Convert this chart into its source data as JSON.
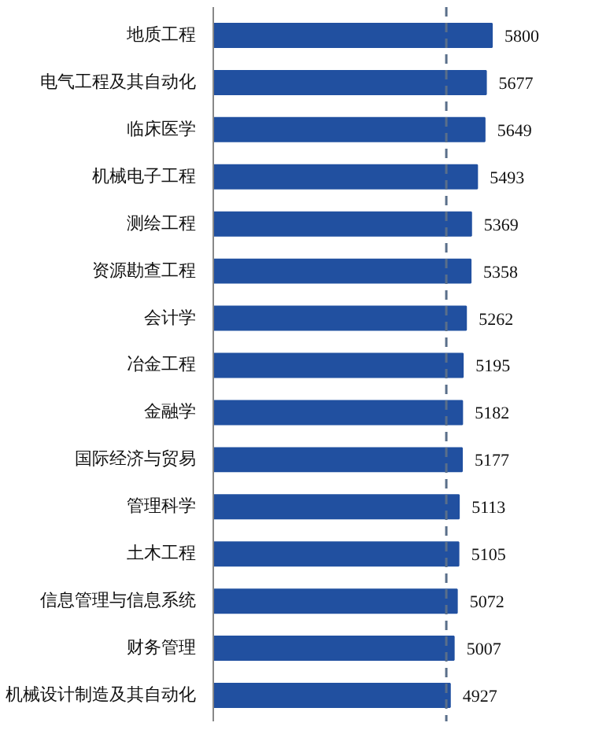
{
  "chart_data": {
    "type": "bar",
    "orientation": "horizontal",
    "categories": [
      "地质工程",
      "电气工程及其自动化",
      "临床医学",
      "机械电子工程",
      "测绘工程",
      "资源勘查工程",
      "会计学",
      "冶金工程",
      "金融学",
      "国际经济与贸易",
      "管理科学",
      "土木工程",
      "信息管理与信息系统",
      "财务管理",
      "机械设计制造及其自动化"
    ],
    "values": [
      5800,
      5677,
      5649,
      5493,
      5369,
      5358,
      5262,
      5195,
      5182,
      5177,
      5113,
      5105,
      5072,
      5007,
      4927
    ],
    "color": "#2150a0",
    "data_labels": true,
    "tick_labels": "y",
    "ref_lines": [
      {
        "axis": "x",
        "value": 4850,
        "label": null,
        "color": "#5a6f8a",
        "line_style": "dashed"
      }
    ]
  }
}
